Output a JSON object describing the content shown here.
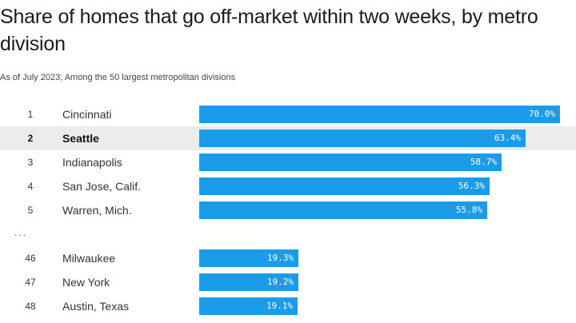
{
  "chart_data": {
    "type": "bar",
    "orientation": "horizontal",
    "title": "Share of homes that go off-market within two weeks, by metro division",
    "subtitle": "As of July 2023; Among the 50 largest metropolitan divisions",
    "value_format": "percent, one decimal",
    "xlim": [
      0,
      70
    ],
    "bar_color": "#1b9ce8",
    "highlight_color": "#ececec",
    "ellipsis": "...",
    "rows": [
      {
        "rank": "1",
        "name": "Cincinnati",
        "value": 70.0,
        "label": "70.0%",
        "highlight": false
      },
      {
        "rank": "2",
        "name": "Seattle",
        "value": 63.4,
        "label": "63.4%",
        "highlight": true
      },
      {
        "rank": "3",
        "name": "Indianapolis",
        "value": 58.7,
        "label": "58.7%",
        "highlight": false
      },
      {
        "rank": "4",
        "name": "San Jose, Calif.",
        "value": 56.3,
        "label": "56.3%",
        "highlight": false
      },
      {
        "rank": "5",
        "name": "Warren, Mich.",
        "value": 55.8,
        "label": "55.8%",
        "highlight": false
      },
      {
        "rank": "46",
        "name": "Milwaukee",
        "value": 19.3,
        "label": "19.3%",
        "highlight": false
      },
      {
        "rank": "47",
        "name": "New York",
        "value": 19.2,
        "label": "19.2%",
        "highlight": false
      },
      {
        "rank": "48",
        "name": "Austin, Texas",
        "value": 19.1,
        "label": "19.1%",
        "highlight": false
      }
    ]
  }
}
